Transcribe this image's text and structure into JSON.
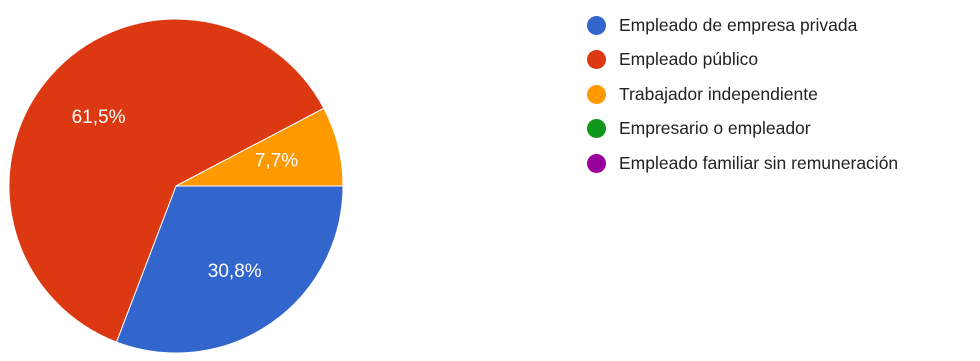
{
  "chart_data": {
    "type": "pie",
    "categories": [
      "Empleado de empresa privada",
      "Empleado público",
      "Trabajador independiente",
      "Empresario o empleador",
      "Empleado familiar sin remuneración"
    ],
    "values": [
      30.8,
      61.5,
      7.7,
      0,
      0
    ],
    "value_labels": [
      "30,8%",
      "61,5%",
      "7,7%",
      "",
      ""
    ],
    "colors": [
      "#3366cc",
      "#dc3912",
      "#ff9900",
      "#109618",
      "#990099"
    ],
    "start": "3 o'clock, clockwise",
    "legend_position": "right"
  }
}
